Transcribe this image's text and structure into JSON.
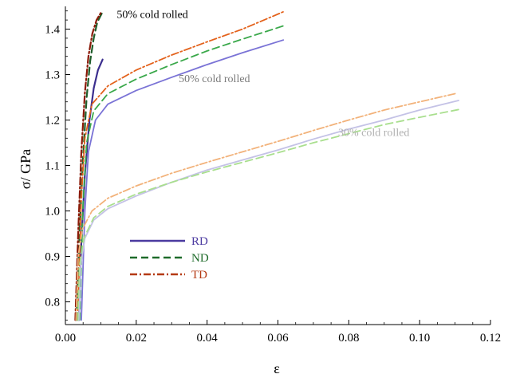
{
  "chart_data": {
    "type": "line",
    "title": "",
    "xlabel": "ε",
    "ylabel": "σ/ GPa",
    "xlim": [
      0.0,
      0.12
    ],
    "ylim": [
      0.75,
      1.45
    ],
    "grid": false,
    "legend_placement": "center-left",
    "x_ticks": [
      "0.00",
      "0.02",
      "0.04",
      "0.06",
      "0.08",
      "0.10",
      "0.12"
    ],
    "y_ticks": [
      "0.8",
      "0.9",
      "1.0",
      "1.1",
      "1.2",
      "1.3",
      "1.4"
    ],
    "legend": [
      {
        "name": "RD",
        "color": "#4b3aa0",
        "dash": "solid"
      },
      {
        "name": "ND",
        "color": "#1e6b2a",
        "dash": "dashed"
      },
      {
        "name": "TD",
        "color": "#b53a14",
        "dash": "dashdot"
      }
    ],
    "annotations": [
      {
        "text": "50% cold rolled",
        "color": "#000000",
        "x": 0.0145,
        "y": 1.425
      },
      {
        "text": "50% cold rolled",
        "color": "#7a7a7a",
        "x": 0.032,
        "y": 1.283
      },
      {
        "text": "30% cold rolled",
        "color": "#b0b0b0",
        "x": 0.077,
        "y": 1.165
      }
    ],
    "series": [
      {
        "name": "RD",
        "color": "#3b2e8e",
        "dash": "solid",
        "width": 2.2,
        "points": [
          [
            0.0038,
            0.76
          ],
          [
            0.0045,
            0.93
          ],
          [
            0.0055,
            1.08
          ],
          [
            0.0068,
            1.2
          ],
          [
            0.008,
            1.27
          ],
          [
            0.0092,
            1.31
          ],
          [
            0.0105,
            1.333
          ]
        ]
      },
      {
        "name": "ND",
        "color": "#1f5e2b",
        "dash": "dashed",
        "width": 2.2,
        "points": [
          [
            0.0032,
            0.76
          ],
          [
            0.004,
            0.95
          ],
          [
            0.005,
            1.12
          ],
          [
            0.006,
            1.25
          ],
          [
            0.007,
            1.33
          ],
          [
            0.008,
            1.38
          ],
          [
            0.009,
            1.415
          ],
          [
            0.0103,
            1.435
          ]
        ]
      },
      {
        "name": "TD",
        "color": "#8b1a08",
        "dash": "dashdot",
        "width": 2.2,
        "points": [
          [
            0.0028,
            0.76
          ],
          [
            0.0036,
            0.95
          ],
          [
            0.0045,
            1.13
          ],
          [
            0.0055,
            1.26
          ],
          [
            0.0065,
            1.34
          ],
          [
            0.0076,
            1.39
          ],
          [
            0.0088,
            1.42
          ],
          [
            0.0101,
            1.437
          ]
        ]
      },
      {
        "name": "",
        "color": "#7a73d6",
        "dash": "solid",
        "width": 1.8,
        "points": [
          [
            0.0045,
            0.76
          ],
          [
            0.0055,
            1.0
          ],
          [
            0.0065,
            1.13
          ],
          [
            0.0085,
            1.2
          ],
          [
            0.012,
            1.235
          ],
          [
            0.02,
            1.265
          ],
          [
            0.03,
            1.294
          ],
          [
            0.04,
            1.322
          ],
          [
            0.05,
            1.348
          ],
          [
            0.0615,
            1.376
          ]
        ]
      },
      {
        "name": "",
        "color": "#3aa84a",
        "dash": "dashed",
        "width": 1.8,
        "points": [
          [
            0.004,
            0.76
          ],
          [
            0.005,
            1.02
          ],
          [
            0.006,
            1.15
          ],
          [
            0.008,
            1.22
          ],
          [
            0.012,
            1.258
          ],
          [
            0.02,
            1.29
          ],
          [
            0.03,
            1.322
          ],
          [
            0.04,
            1.352
          ],
          [
            0.05,
            1.378
          ],
          [
            0.0615,
            1.407
          ]
        ]
      },
      {
        "name": "",
        "color": "#e3621c",
        "dash": "dashdot",
        "width": 1.8,
        "points": [
          [
            0.0035,
            0.76
          ],
          [
            0.0045,
            1.03
          ],
          [
            0.0055,
            1.16
          ],
          [
            0.0075,
            1.235
          ],
          [
            0.012,
            1.275
          ],
          [
            0.02,
            1.31
          ],
          [
            0.03,
            1.343
          ],
          [
            0.04,
            1.372
          ],
          [
            0.05,
            1.4
          ],
          [
            0.0615,
            1.438
          ]
        ]
      },
      {
        "name": "",
        "color": "#c4c2e6",
        "dash": "solid",
        "width": 1.8,
        "points": [
          [
            0.0038,
            0.76
          ],
          [
            0.0043,
            0.88
          ],
          [
            0.0055,
            0.94
          ],
          [
            0.008,
            0.98
          ],
          [
            0.012,
            1.005
          ],
          [
            0.02,
            1.033
          ],
          [
            0.03,
            1.063
          ],
          [
            0.04,
            1.09
          ],
          [
            0.05,
            1.112
          ],
          [
            0.06,
            1.134
          ],
          [
            0.07,
            1.158
          ],
          [
            0.08,
            1.18
          ],
          [
            0.09,
            1.2
          ],
          [
            0.1,
            1.222
          ],
          [
            0.111,
            1.243
          ]
        ]
      },
      {
        "name": "",
        "color": "#a9df8e",
        "dash": "dashed",
        "width": 1.8,
        "points": [
          [
            0.0035,
            0.76
          ],
          [
            0.004,
            0.88
          ],
          [
            0.0052,
            0.94
          ],
          [
            0.008,
            0.985
          ],
          [
            0.012,
            1.01
          ],
          [
            0.02,
            1.037
          ],
          [
            0.03,
            1.063
          ],
          [
            0.04,
            1.086
          ],
          [
            0.05,
            1.107
          ],
          [
            0.06,
            1.128
          ],
          [
            0.07,
            1.15
          ],
          [
            0.08,
            1.17
          ],
          [
            0.09,
            1.19
          ],
          [
            0.1,
            1.206
          ],
          [
            0.111,
            1.223
          ]
        ]
      },
      {
        "name": "",
        "color": "#f2b27a",
        "dash": "dashdot",
        "width": 1.8,
        "points": [
          [
            0.003,
            0.76
          ],
          [
            0.0036,
            0.9
          ],
          [
            0.0048,
            0.96
          ],
          [
            0.0075,
            1.0
          ],
          [
            0.012,
            1.028
          ],
          [
            0.02,
            1.055
          ],
          [
            0.03,
            1.083
          ],
          [
            0.04,
            1.107
          ],
          [
            0.05,
            1.13
          ],
          [
            0.06,
            1.153
          ],
          [
            0.07,
            1.177
          ],
          [
            0.08,
            1.2
          ],
          [
            0.09,
            1.222
          ],
          [
            0.1,
            1.24
          ],
          [
            0.11,
            1.258
          ]
        ]
      }
    ]
  }
}
